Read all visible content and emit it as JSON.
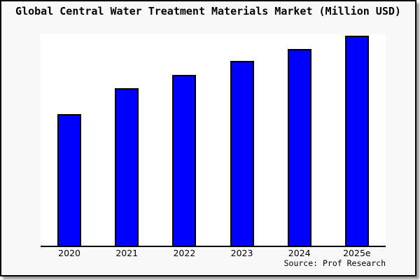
{
  "chart_data": {
    "type": "bar",
    "title": "Global Central Water Treatment Materials Market (Million USD)",
    "categories": [
      "2020",
      "2021",
      "2022",
      "2023",
      "2024",
      "2025e"
    ],
    "values": [
      62.7,
      75.0,
      81.3,
      88.0,
      93.7,
      100.0
    ],
    "value_basis": "relative index estimated from bar heights; y-axis has no tick labels; 2025e = 100",
    "xlabel": "",
    "ylabel": "",
    "ylim": [
      0,
      100.7
    ],
    "grid": false,
    "legend": false,
    "bar_color": "#0000ff",
    "bar_border_color": "#000000",
    "source": "Source: Prof Research"
  },
  "colors": {
    "canvas_background": "#f8f8f8",
    "plot_background": "#ffffff",
    "axis": "#000000",
    "text": "#000000",
    "frame_border": "#000000",
    "frame_shadow": "#9a9a9a"
  }
}
